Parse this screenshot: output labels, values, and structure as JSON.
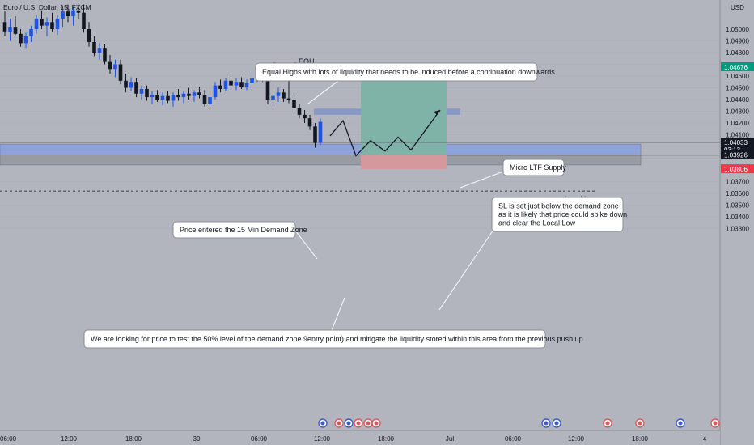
{
  "chart_data": {
    "type": "candlestick",
    "title": "Euro / U.S. Dollar, 15, FXCM",
    "currency_label": "USD",
    "ylim": [
      1.033,
      1.052
    ],
    "y_ticks": [
      1.05,
      1.049,
      1.048,
      1.047,
      1.046,
      1.045,
      1.044,
      1.043,
      1.042,
      1.041,
      1.039,
      1.037,
      1.036,
      1.035,
      1.034,
      1.033
    ],
    "y_tick_labels": [
      "1.05000",
      "1.04900",
      "1.04800",
      "1.04700",
      "1.04600",
      "1.04500",
      "1.04400",
      "1.04300",
      "1.04200",
      "1.04100",
      "1.03900",
      "1.03700",
      "1.03600",
      "1.03500",
      "1.03400",
      "1.03300"
    ],
    "x_tick_labels": [
      "06:00",
      "12:00",
      "18:00",
      "30",
      "06:00",
      "12:00",
      "18:00",
      "Jul",
      "06:00",
      "12:00",
      "18:00",
      "4"
    ],
    "price_tags": [
      {
        "label": "1.04676",
        "value": 1.04676,
        "color": "#089981"
      },
      {
        "label": "1.04033",
        "sub": "03:13",
        "value": 1.04033,
        "color": "#131722"
      },
      {
        "label": "1.03926",
        "value": 1.03926,
        "color": "#131722"
      },
      {
        "label": "1.03806",
        "value": 1.03806,
        "color": "#f23645"
      }
    ],
    "series": [
      {
        "type": "candles",
        "values": [
          [
            1.0506,
            1.0515,
            1.0494,
            1.0498
          ],
          [
            1.0498,
            1.0509,
            1.049,
            1.0502
          ],
          [
            1.0502,
            1.0511,
            1.0495,
            1.0496
          ],
          [
            1.0496,
            1.05,
            1.0485,
            1.0488
          ],
          [
            1.0488,
            1.0497,
            1.0484,
            1.0494
          ],
          [
            1.0494,
            1.0503,
            1.0489,
            1.05
          ],
          [
            1.05,
            1.0512,
            1.0496,
            1.0509
          ],
          [
            1.0509,
            1.0516,
            1.05,
            1.0503
          ],
          [
            1.0503,
            1.051,
            1.0494,
            1.0506
          ],
          [
            1.0506,
            1.0514,
            1.0498,
            1.05
          ],
          [
            1.05,
            1.0512,
            1.0495,
            1.0509
          ],
          [
            1.0509,
            1.052,
            1.0502,
            1.0515
          ],
          [
            1.0515,
            1.0521,
            1.0506,
            1.0511
          ],
          [
            1.0511,
            1.0519,
            1.0503,
            1.0516
          ],
          [
            1.0516,
            1.0521,
            1.0509,
            1.0514
          ],
          [
            1.0514,
            1.0521,
            1.0497,
            1.05
          ],
          [
            1.05,
            1.0506,
            1.0485,
            1.0489
          ],
          [
            1.0489,
            1.0494,
            1.0477,
            1.048
          ],
          [
            1.048,
            1.0488,
            1.0474,
            1.0484
          ],
          [
            1.0484,
            1.0487,
            1.047,
            1.0472
          ],
          [
            1.0472,
            1.0478,
            1.0462,
            1.0466
          ],
          [
            1.0466,
            1.0474,
            1.0459,
            1.047
          ],
          [
            1.047,
            1.0474,
            1.0453,
            1.0456
          ],
          [
            1.0456,
            1.0462,
            1.0446,
            1.045
          ],
          [
            1.045,
            1.0459,
            1.0447,
            1.0455
          ],
          [
            1.0455,
            1.0458,
            1.0442,
            1.0445
          ],
          [
            1.0445,
            1.0452,
            1.044,
            1.0449
          ],
          [
            1.0449,
            1.0452,
            1.0439,
            1.0442
          ],
          [
            1.0442,
            1.0447,
            1.0436,
            1.0444
          ],
          [
            1.0444,
            1.0448,
            1.0438,
            1.044
          ],
          [
            1.044,
            1.0446,
            1.0435,
            1.0443
          ],
          [
            1.0443,
            1.0447,
            1.0437,
            1.0439
          ],
          [
            1.0439,
            1.0446,
            1.0434,
            1.0444
          ],
          [
            1.0444,
            1.0449,
            1.0439,
            1.0442
          ],
          [
            1.0442,
            1.0447,
            1.0437,
            1.0445
          ],
          [
            1.0445,
            1.045,
            1.044,
            1.0443
          ],
          [
            1.0443,
            1.0448,
            1.0438,
            1.0446
          ],
          [
            1.0446,
            1.0451,
            1.0441,
            1.0444
          ],
          [
            1.0444,
            1.0448,
            1.0434,
            1.0436
          ],
          [
            1.0436,
            1.0445,
            1.0433,
            1.0442
          ],
          [
            1.0442,
            1.0455,
            1.044,
            1.0452
          ],
          [
            1.0452,
            1.0457,
            1.0446,
            1.0449
          ],
          [
            1.0449,
            1.0458,
            1.0447,
            1.0456
          ],
          [
            1.0456,
            1.046,
            1.045,
            1.0452
          ],
          [
            1.0452,
            1.0458,
            1.0448,
            1.0455
          ],
          [
            1.0455,
            1.0459,
            1.0449,
            1.0451
          ],
          [
            1.0451,
            1.0457,
            1.0448,
            1.0454
          ],
          [
            1.0454,
            1.0461,
            1.045,
            1.0458
          ],
          [
            1.0458,
            1.0468,
            1.0455,
            1.0465
          ],
          [
            1.0465,
            1.0469,
            1.0455,
            1.0458
          ],
          [
            1.0458,
            1.0462,
            1.0436,
            1.044
          ],
          [
            1.044,
            1.0445,
            1.0432,
            1.0443
          ],
          [
            1.0443,
            1.045,
            1.0438,
            1.0446
          ],
          [
            1.0446,
            1.0449,
            1.0438,
            1.0441
          ],
          [
            1.0441,
            1.0468,
            1.0437,
            1.044
          ],
          [
            1.044,
            1.0444,
            1.043,
            1.0433
          ],
          [
            1.0433,
            1.0436,
            1.0424,
            1.0427
          ],
          [
            1.0427,
            1.0431,
            1.042,
            1.0424
          ],
          [
            1.0424,
            1.0427,
            1.0414,
            1.0417
          ],
          [
            1.0417,
            1.042,
            1.0399,
            1.0403
          ],
          [
            1.0403,
            1.0424,
            1.0401,
            1.0421
          ]
        ]
      },
      {
        "type": "projection",
        "name": "",
        "values": [
          [
            1.0409,
            1.0422
          ],
          [
            1.0422,
            1.0392
          ],
          [
            1.0392,
            1.0405
          ],
          [
            1.0405,
            1.0396
          ],
          [
            1.0396,
            1.0408
          ],
          [
            1.0408,
            1.0397
          ],
          [
            1.0397,
            1.0431
          ]
        ]
      }
    ],
    "zones": [
      {
        "type": "demand-zone",
        "top": 1.0402,
        "bottom": 1.03926
      },
      {
        "type": "demand-zone-lower",
        "top": 1.03926,
        "bottom": 1.03842
      },
      {
        "type": "ltf-supply",
        "top": 1.04322,
        "bottom": 1.0427
      },
      {
        "type": "take-profit",
        "top": 1.04676,
        "bottom": 1.03926
      },
      {
        "type": "stop-loss",
        "top": 1.03926,
        "bottom": 1.03806
      }
    ],
    "levels": [
      {
        "name": "EQH",
        "value": 1.04676
      },
      {
        "name": "Local Low",
        "value": 1.0362
      }
    ],
    "annotations": [
      {
        "id": "eqh",
        "lines": [
          "Equal Highs with lots of liquidity that needs to be induced before a continuation downwards."
        ]
      },
      {
        "id": "micro",
        "lines": [
          "Micro LTF Supply"
        ]
      },
      {
        "id": "sl",
        "lines": [
          "SL is set just below the demand zone",
          "as it is likely that price could spike down",
          "and clear the Local Low"
        ]
      },
      {
        "id": "price",
        "lines": [
          "Price entered the 15 Min Demand Zone"
        ]
      },
      {
        "id": "looking",
        "lines": [
          "We are looking for price to test the 50% level of the demand zone 9entry point) and mitigate the liquidity stored within this area from the previous push up"
        ]
      }
    ]
  },
  "colors": {
    "background": "#b2b5be",
    "bull": "#1e53e5",
    "bear": "#131722",
    "demand_zone": "#8fa3db",
    "lower_zone": "#999ba3",
    "take_profit": "#80b3a8",
    "stop_loss": "#d4989d",
    "supply_zone": "#8898c4",
    "eqh_marker": "#4f7cf1"
  }
}
